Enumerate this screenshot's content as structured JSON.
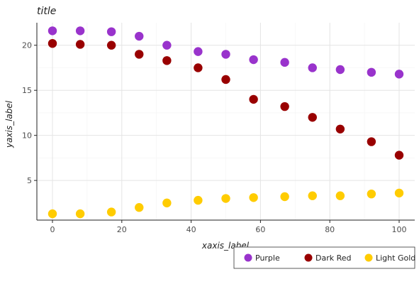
{
  "chart_data": {
    "type": "line",
    "title": "title",
    "xlabel": "xaxis_label",
    "ylabel": "yaxis_label",
    "xlim": [
      -4.5,
      104.5
    ],
    "ylim": [
      0.6,
      22.5
    ],
    "x_ticks": [
      0,
      20,
      40,
      60,
      80,
      100
    ],
    "x_tick_labels": [
      "0",
      "20",
      "40",
      "60",
      "80",
      "100"
    ],
    "y_ticks": [
      5,
      10,
      15,
      20
    ],
    "y_tick_labels": [
      "5",
      "10",
      "15",
      "20"
    ],
    "grid": true,
    "legend_position": "bottom-right",
    "x": [
      0,
      8,
      17,
      25,
      33,
      42,
      50,
      58,
      67,
      75,
      83,
      92,
      100
    ],
    "series": [
      {
        "name": "Purple",
        "color": "#9933cc",
        "values": [
          21.6,
          21.6,
          21.5,
          21.0,
          20.0,
          19.3,
          19.0,
          18.4,
          18.1,
          17.5,
          17.3,
          17.0,
          16.8
        ]
      },
      {
        "name": "Dark Red",
        "color": "#990000",
        "values": [
          20.2,
          20.1,
          20.0,
          19.0,
          18.3,
          17.5,
          16.2,
          14.0,
          13.2,
          12.0,
          10.7,
          9.3,
          7.8
        ]
      },
      {
        "name": "Light Gold",
        "color": "#ffcc00",
        "values": [
          1.3,
          1.3,
          1.5,
          2.0,
          2.5,
          2.8,
          3.0,
          3.1,
          3.2,
          3.3,
          3.3,
          3.5,
          3.6
        ]
      }
    ]
  }
}
